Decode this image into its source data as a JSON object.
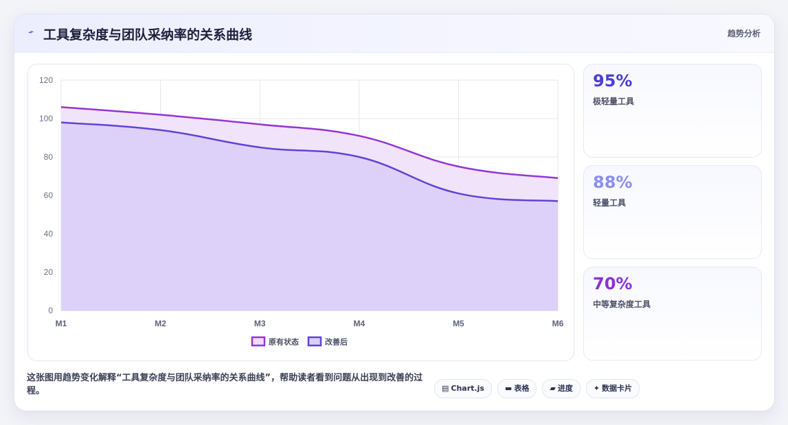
{
  "header": {
    "icon": "chart-line-icon",
    "title": "工具复杂度与团队采纳率的关系曲线",
    "tag": "趋势分析"
  },
  "chart_data": {
    "type": "area",
    "categories": [
      "M1",
      "M2",
      "M3",
      "M4",
      "M5",
      "M6"
    ],
    "series": [
      {
        "name": "原有状态",
        "values": [
          106,
          102,
          97,
          91,
          75,
          69
        ],
        "color": "#9434d6",
        "fill": "#efe0f8"
      },
      {
        "name": "改善后",
        "values": [
          98,
          94,
          85,
          80,
          61,
          57
        ],
        "color": "#5c44d8",
        "fill": "#dccef8"
      }
    ],
    "title": "",
    "xlabel": "",
    "ylabel": "",
    "ylim": [
      0,
      120
    ],
    "yticks": [
      "0",
      "20",
      "40",
      "60",
      "80",
      "100",
      "120"
    ],
    "grid": true,
    "legend": "bottom"
  },
  "stats": [
    {
      "value": "95%",
      "label": "极轻量工具",
      "color": "#4b3ed6"
    },
    {
      "value": "88%",
      "label": "轻量工具",
      "color": "#8c8ef0"
    },
    {
      "value": "70%",
      "label": "中等复杂度工具",
      "color": "#8a32d4"
    }
  ],
  "description": "这张图用趋势变化解释“工具复杂度与团队采纳率的关系曲线”，帮助读者看到问题从出现到改善的过程。",
  "tags": [
    {
      "icon": "chart-icon",
      "glyph": "▤",
      "label": "Chart.js"
    },
    {
      "icon": "table-icon",
      "glyph": "▬",
      "label": "表格"
    },
    {
      "icon": "progress-icon",
      "glyph": "▰",
      "label": "进度"
    },
    {
      "icon": "sparkle-icon",
      "glyph": "✦",
      "label": "数据卡片"
    }
  ]
}
